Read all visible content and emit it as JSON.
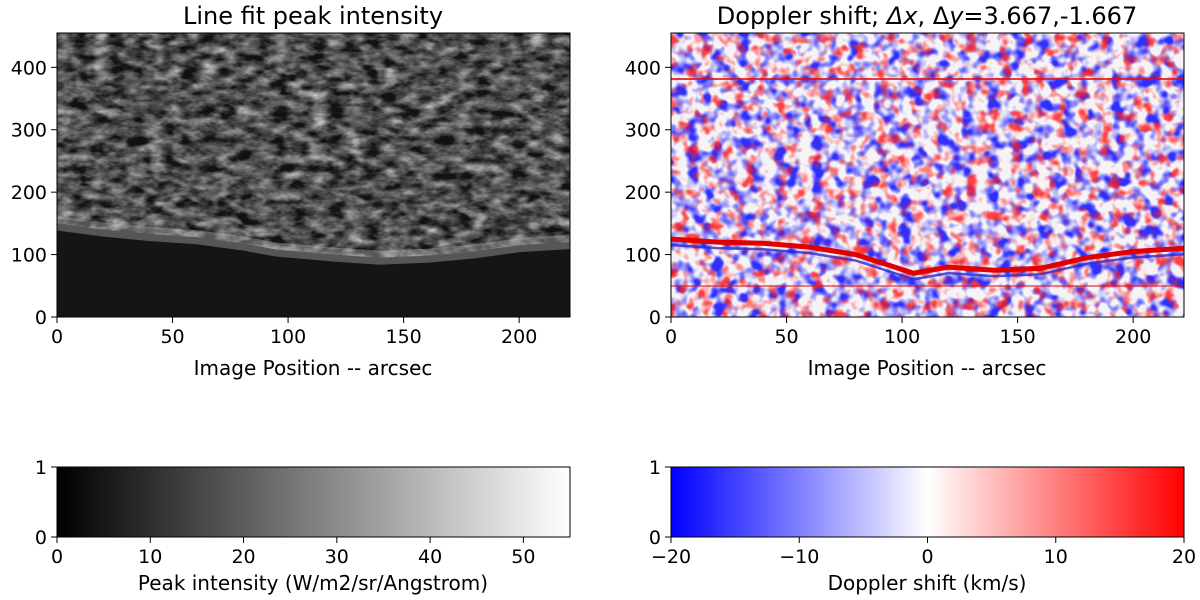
{
  "chart_data": [
    {
      "type": "heatmap",
      "title": "Line fit peak intensity",
      "xlabel": "Image Position -- arcsec",
      "ylabel": "",
      "xlim": [
        0,
        222
      ],
      "ylim": [
        0,
        455
      ],
      "xticks": [
        0,
        50,
        100,
        150,
        200
      ],
      "yticks": [
        0,
        100,
        200,
        300,
        400
      ],
      "colormap": "grayscale",
      "limb_profile": {
        "x": [
          0,
          20,
          40,
          60,
          80,
          95,
          105,
          120,
          140,
          160,
          180,
          200,
          222
        ],
        "y": [
          150,
          140,
          133,
          128,
          118,
          108,
          105,
          100,
          95,
          98,
          105,
          115,
          120
        ]
      }
    },
    {
      "type": "heatmap",
      "title": "Doppler shift; Δx, Δy=3.667,-1.667",
      "title_main": "Doppler shift; ",
      "title_dx": "Δx",
      "title_sep": ", Δ",
      "title_y": "y",
      "title_values": "=3.667,-1.667",
      "xlabel": "Image Position -- arcsec",
      "ylabel": "",
      "xlim": [
        0,
        222
      ],
      "ylim": [
        0,
        455
      ],
      "xticks": [
        0,
        50,
        100,
        150,
        200
      ],
      "yticks": [
        0,
        100,
        200,
        300,
        400
      ],
      "colormap": "bwr",
      "limb_profile": {
        "x": [
          0,
          20,
          40,
          60,
          80,
          95,
          105,
          120,
          140,
          160,
          180,
          200,
          222
        ],
        "y": [
          125,
          120,
          118,
          112,
          100,
          82,
          70,
          80,
          75,
          78,
          95,
          105,
          110
        ]
      }
    },
    {
      "type": "colorbar",
      "xlabel": "Peak intensity (W/m2/sr/Angstrom)",
      "range": [
        0,
        55
      ],
      "xticks": [
        0,
        10,
        20,
        30,
        40,
        50
      ],
      "yticks": [
        0,
        1
      ],
      "colors": [
        "#000000",
        "#ffffff"
      ]
    },
    {
      "type": "colorbar",
      "xlabel": "Doppler shift (km/s)",
      "range": [
        -20,
        20
      ],
      "xticks": [
        -20,
        -10,
        0,
        10,
        20
      ],
      "xtick_labels": [
        "−20",
        "−10",
        "0",
        "10",
        "20"
      ],
      "yticks": [
        0,
        1
      ],
      "colors": [
        "#0000ff",
        "#ffffff",
        "#ff0000"
      ]
    }
  ]
}
